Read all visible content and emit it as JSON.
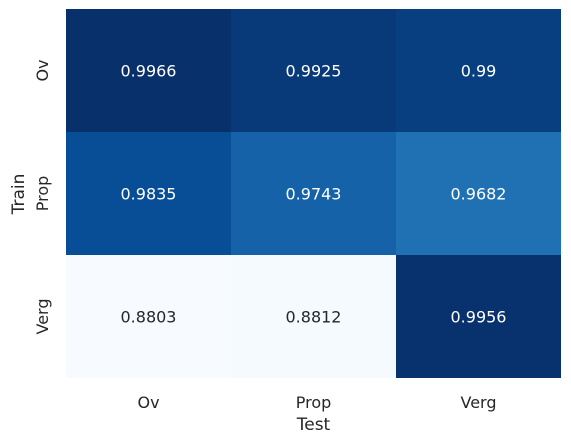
{
  "chart_data": {
    "type": "heatmap",
    "x_categories": [
      "Ov",
      "Prop",
      "Verg"
    ],
    "y_categories": [
      "Ov",
      "Prop",
      "Verg"
    ],
    "values": [
      [
        0.9966,
        0.9925,
        0.99
      ],
      [
        0.9835,
        0.9743,
        0.9682
      ],
      [
        0.8803,
        0.8812,
        0.9956
      ]
    ],
    "cell_labels": [
      [
        "0.9966",
        "0.9925",
        "0.99"
      ],
      [
        "0.9835",
        "0.9743",
        "0.9682"
      ],
      [
        "0.8803",
        "0.8812",
        "0.9956"
      ]
    ],
    "xlabel": "Test",
    "ylabel": "Train",
    "colormap": "Blues",
    "colorbar": false,
    "grid": false
  }
}
